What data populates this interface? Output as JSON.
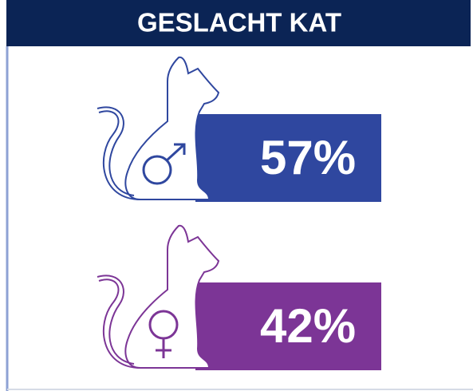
{
  "chart_data": {
    "type": "stat",
    "title": "GESLACHT KAT",
    "values": [
      57,
      42
    ],
    "value_labels": [
      "57%",
      "42%"
    ],
    "colors": [
      "#2f479f",
      "#7c3596"
    ]
  }
}
